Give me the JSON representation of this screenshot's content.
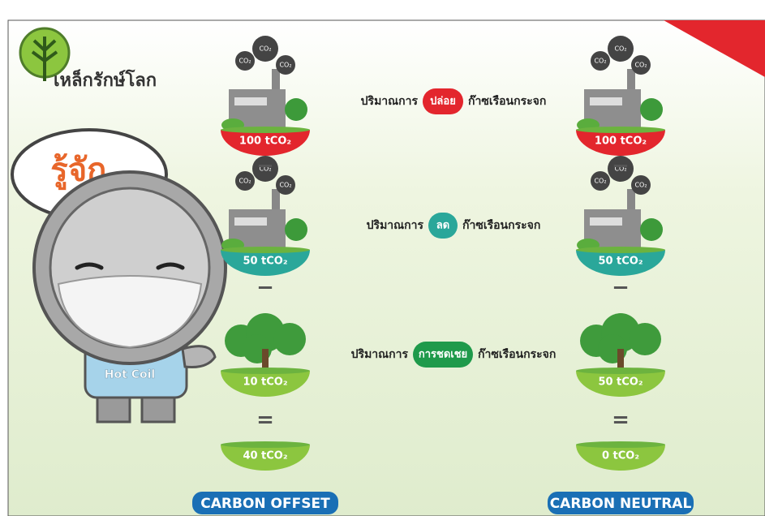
{
  "brand": "เหล็กรักษ์โลก",
  "speech": "รู้จัก..",
  "mascot_shirt": "Hot Coil",
  "cloud_label": "CO₂",
  "rows": [
    {
      "prefix": "ปริมาณการ",
      "action": "ปล่อย",
      "suffix": "ก๊าซเรือนกระจก"
    },
    {
      "prefix": "ปริมาณการ",
      "action": "ลด",
      "suffix": "ก๊าซเรือนกระจก"
    },
    {
      "prefix": "ปริมาณการ",
      "action": "การชดเชย",
      "suffix": "ก๊าซเรือนกระจก"
    }
  ],
  "operators": [
    "−",
    "−",
    "="
  ],
  "columns": [
    {
      "title": "CARBON OFFSET",
      "values": [
        "100 tCO₂",
        "50 tCO₂",
        "10 tCO₂",
        "40 tCO₂"
      ]
    },
    {
      "title": "CARBON NEUTRAL",
      "values": [
        "100 tCO₂",
        "50 tCO₂",
        "50 tCO₂",
        "0 tCO₂"
      ]
    }
  ]
}
